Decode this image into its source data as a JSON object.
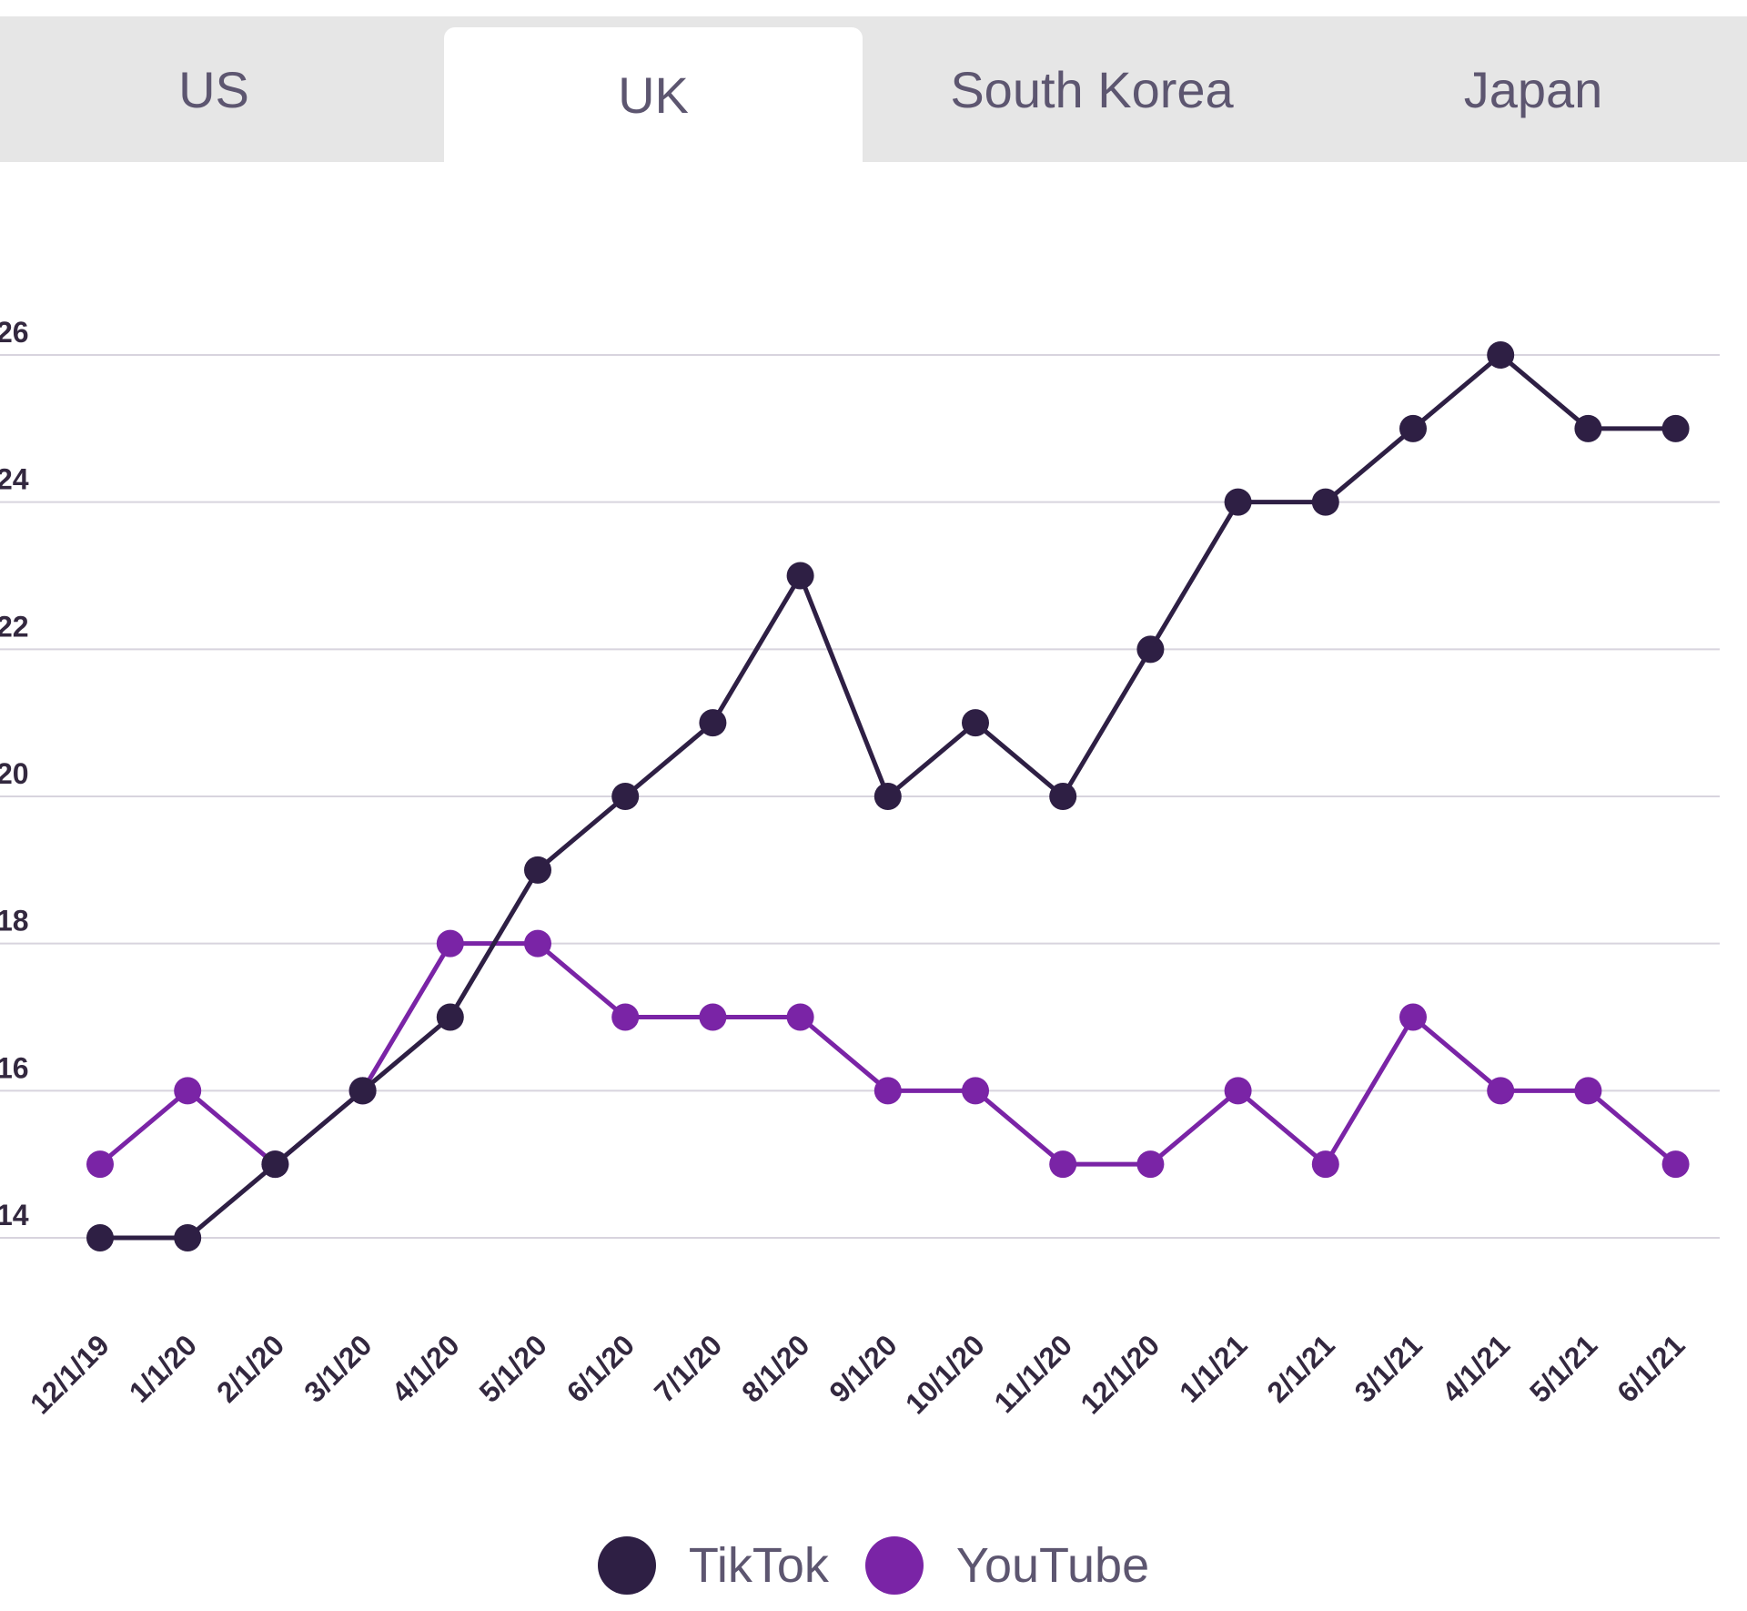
{
  "tabs": [
    {
      "label": "US",
      "active": false
    },
    {
      "label": "UK",
      "active": true
    },
    {
      "label": "South Korea",
      "active": false
    },
    {
      "label": "Japan",
      "active": false
    }
  ],
  "colors": {
    "tiktok": "#2e1f44",
    "youtube": "#7a24a6",
    "grid": "#d8d4de"
  },
  "chart_data": {
    "type": "line",
    "categories": [
      "12/1/19",
      "1/1/20",
      "2/1/20",
      "3/1/20",
      "4/1/20",
      "5/1/20",
      "6/1/20",
      "7/1/20",
      "8/1/20",
      "9/1/20",
      "10/1/20",
      "11/1/20",
      "12/1/20",
      "1/1/21",
      "2/1/21",
      "3/1/21",
      "4/1/21",
      "5/1/21",
      "6/1/21"
    ],
    "series": [
      {
        "name": "TikTok",
        "values": [
          14,
          14,
          15,
          16,
          17,
          19,
          20,
          21,
          23,
          20,
          21,
          20,
          22,
          24,
          24,
          25,
          26,
          25,
          25
        ]
      },
      {
        "name": "YouTube",
        "values": [
          15,
          16,
          15,
          16,
          18,
          18,
          17,
          17,
          17,
          16,
          16,
          15,
          15,
          16,
          15,
          17,
          16,
          16,
          15
        ]
      }
    ],
    "yticks": [
      "14",
      "16",
      "18",
      "20",
      "22",
      "24",
      "26"
    ],
    "ylim": [
      14,
      26
    ],
    "grid": true,
    "legend": "bottom-center"
  }
}
